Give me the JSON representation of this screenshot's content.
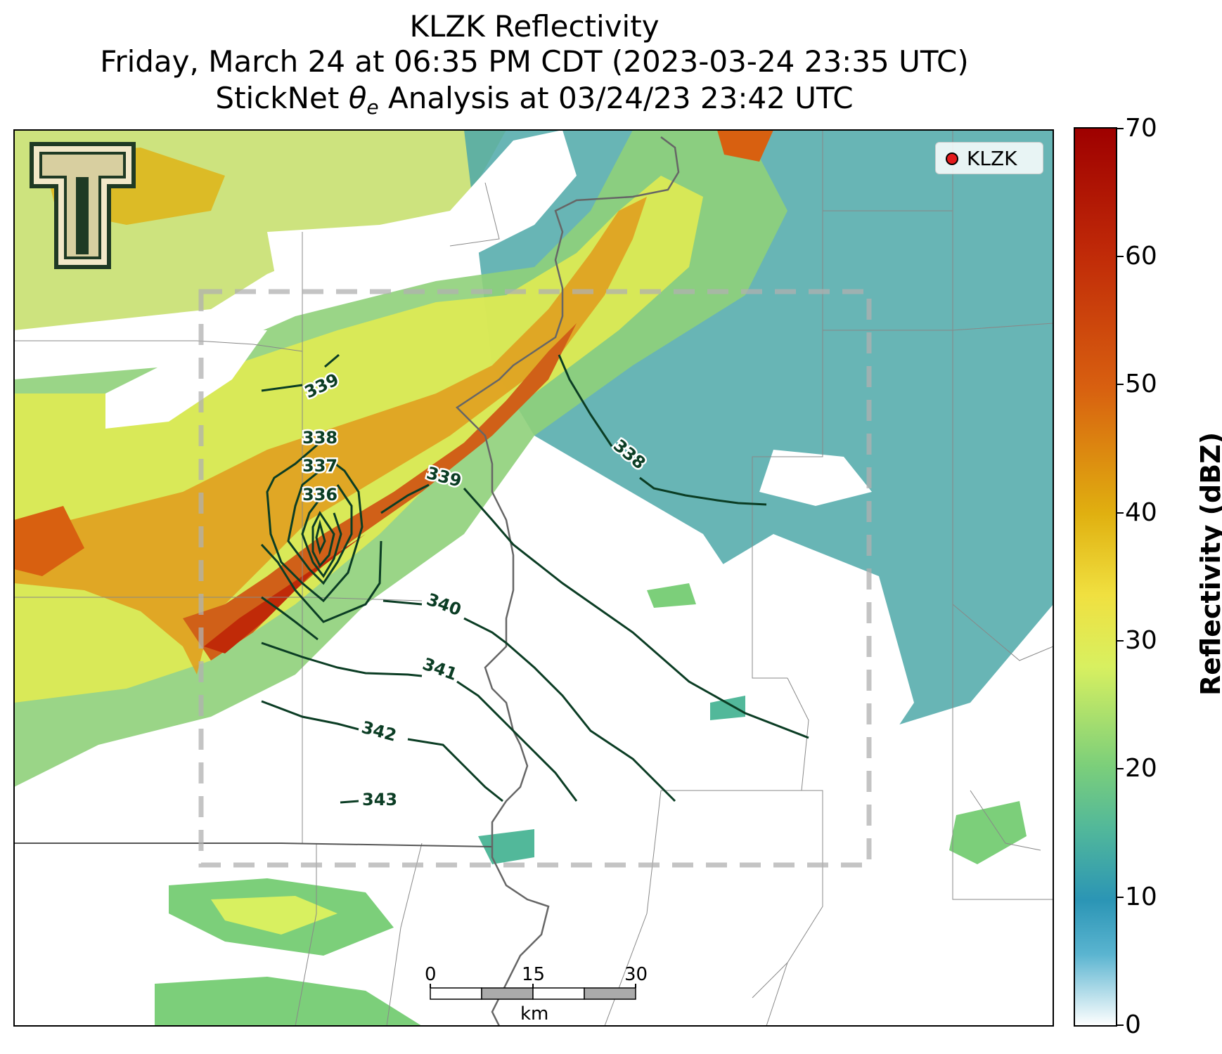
{
  "title": {
    "line1": "KLZK Reflectivity",
    "line2": "Friday, March 24 at 06:35 PM CDT (2023-03-24 23:35 UTC)",
    "line3_pre": "StickNet ",
    "line3_symbol": "θ",
    "line3_sub": "e",
    "line3_post": " Analysis at 03/24/23 23:42 UTC"
  },
  "legend": {
    "label": "KLZK",
    "marker_color": "#e31a1c"
  },
  "colorbar": {
    "label": "Reflectivity (dBZ)",
    "ticks": [
      "0",
      "10",
      "20",
      "30",
      "40",
      "50",
      "60",
      "70"
    ],
    "range": [
      0,
      70
    ],
    "colors": [
      "#ffffff",
      "#2b95b5",
      "#7ccf7a",
      "#f0f050",
      "#e0b010",
      "#d86010",
      "#c02a08",
      "#9e0000"
    ]
  },
  "contours": {
    "color": "#0b3d24",
    "labels": [
      "339",
      "338",
      "337",
      "336",
      "338",
      "339",
      "340",
      "341",
      "342",
      "343"
    ]
  },
  "scale_bar": {
    "ticks": [
      "0",
      "15",
      "30"
    ],
    "unit": "km"
  },
  "logo": {
    "name": "Texas Tech Double T"
  },
  "analysis_box": {
    "style": "dashed",
    "color": "#b0b0b0"
  }
}
